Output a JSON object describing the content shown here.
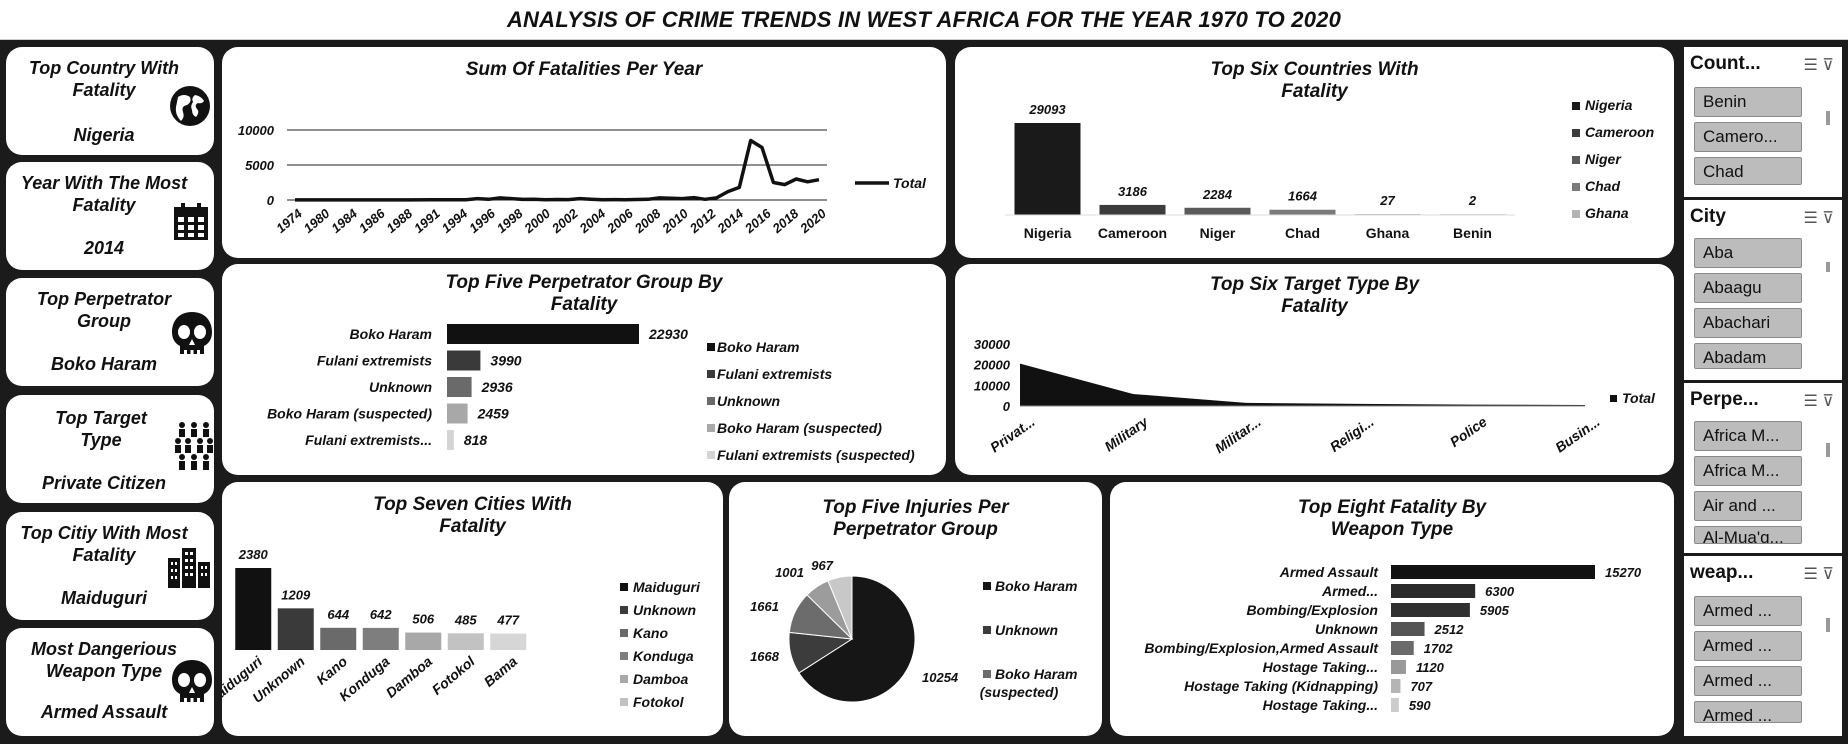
{
  "title": "ANALYSIS OF CRIME TRENDS IN WEST AFRICA FOR THE YEAR 1970 TO 2020",
  "kpis": [
    {
      "title": "Top Country With Fatality",
      "value": "Nigeria",
      "icon": "globe-icon"
    },
    {
      "title": "Year With The Most Fatality",
      "value": "2014",
      "icon": "calendar-icon"
    },
    {
      "title": "Top Perpetrator Group",
      "value": "Boko Haram",
      "icon": "skull-icon"
    },
    {
      "title": "Top Target Type",
      "value": "Private Citizen",
      "icon": "people-icon"
    },
    {
      "title": "Top Citiy With Most Fatality",
      "value": "Maiduguri",
      "icon": "buildings-icon"
    },
    {
      "title": "Most Dangerious Weapon Type",
      "value": "Armed Assault",
      "icon": "skull-icon"
    }
  ],
  "slicers": [
    {
      "header": "Count...",
      "items": [
        "Benin",
        "Camero...",
        "Chad"
      ]
    },
    {
      "header": "City",
      "items": [
        "Aba",
        "Abaagu",
        "Abachari",
        "Abadam"
      ]
    },
    {
      "header": "Perpe...",
      "items": [
        "Africa M...",
        "Africa M...",
        "Air and ...",
        "Al-Mua'q..."
      ]
    },
    {
      "header": "weap...",
      "items": [
        "Armed ...",
        "Armed ...",
        "Armed ...",
        "Armed ..."
      ]
    }
  ],
  "chart_data": [
    {
      "id": "fatalities_per_year",
      "type": "line",
      "title": "Sum Of Fatalities Per Year",
      "tick_labels": [
        "1974",
        "1980",
        "1984",
        "1986",
        "1988",
        "1991",
        "1994",
        "1996",
        "1998",
        "2000",
        "2002",
        "2004",
        "2006",
        "2008",
        "2010",
        "2012",
        "2014",
        "2016",
        "2018",
        "2020"
      ],
      "x": [
        1974,
        1978,
        1980,
        1982,
        1984,
        1986,
        1987,
        1988,
        1989,
        1990,
        1991,
        1992,
        1994,
        1995,
        1996,
        1997,
        1998,
        1999,
        2000,
        2001,
        2002,
        2003,
        2004,
        2005,
        2006,
        2007,
        2008,
        2009,
        2010,
        2011,
        2012,
        2013,
        2014,
        2015,
        2016,
        2017,
        2018,
        2019,
        2020
      ],
      "values": [
        20,
        10,
        15,
        10,
        20,
        30,
        40,
        30,
        50,
        200,
        100,
        300,
        80,
        100,
        50,
        70,
        60,
        200,
        100,
        50,
        60,
        40,
        70,
        100,
        300,
        250,
        200,
        350,
        100,
        300,
        1200,
        1800,
        8500,
        7500,
        2500,
        2200,
        3000,
        2600,
        2900
      ],
      "series": [
        {
          "name": "Total"
        }
      ],
      "yticks": [
        0,
        5000,
        10000
      ],
      "ylim": [
        0,
        10000
      ],
      "grid": true,
      "legend": "right"
    },
    {
      "id": "top_countries",
      "type": "bar",
      "title": "Top Six Countries With Fatality",
      "categories": [
        "Nigeria",
        "Cameroon",
        "Niger",
        "Chad",
        "Ghana",
        "Benin"
      ],
      "values": [
        29093,
        3186,
        2284,
        1664,
        27,
        2
      ],
      "legend_entries": [
        "Nigeria",
        "Cameroon",
        "Niger",
        "Chad",
        "Ghana"
      ],
      "colors": [
        "#1a1a1a",
        "#3c3c3c",
        "#5a5a5a",
        "#7a7a7a",
        "#b4b4b4",
        "#d0d0d0"
      ],
      "legend": "right"
    },
    {
      "id": "top_perpetrators",
      "type": "bar",
      "title": "Top Five Perpetrator Group By Fatality",
      "categories": [
        "Boko Haram",
        "Fulani extremists",
        "Unknown",
        "Boko Haram (suspected)",
        "Fulani extremists..."
      ],
      "legend_entries": [
        "Boko Haram",
        "Fulani extremists",
        "Unknown",
        "Boko Haram (suspected)",
        "Fulani extremists (suspected)"
      ],
      "values": [
        22930,
        3990,
        2936,
        2459,
        818
      ],
      "colors": [
        "#111111",
        "#3a3a3a",
        "#6a6a6a",
        "#a8a8a8",
        "#d4d4d4"
      ],
      "legend": "right"
    },
    {
      "id": "top_target_types",
      "type": "area",
      "title": "Top Six Target Type By Fatality",
      "categories": [
        "Privat...",
        "Military",
        "Militar...",
        "Religi...",
        "Police",
        "Busin..."
      ],
      "values": [
        20500,
        5800,
        1500,
        1000,
        700,
        500
      ],
      "series": [
        {
          "name": "Total"
        }
      ],
      "yticks": [
        0,
        10000,
        20000,
        30000
      ],
      "ylim": [
        0,
        30000
      ],
      "legend": "right"
    },
    {
      "id": "top_cities",
      "type": "bar",
      "title": "Top Seven Cities With Fatality",
      "categories": [
        "Maiduguri",
        "Unknown",
        "Kano",
        "Konduga",
        "Damboa",
        "Fotokol",
        "Bama"
      ],
      "values": [
        2380,
        1209,
        644,
        642,
        506,
        485,
        477
      ],
      "legend_entries": [
        "Maiduguri",
        "Unknown",
        "Kano",
        "Konduga",
        "Damboa",
        "Fotokol"
      ],
      "colors": [
        "#111111",
        "#3a3a3a",
        "#6a6a6a",
        "#7e7e7e",
        "#a8a8a8",
        "#c2c2c2",
        "#d6d6d6"
      ],
      "legend": "right"
    },
    {
      "id": "injuries_by_perpetrator",
      "type": "pie",
      "title": "Top Five Injuries Per Perpetrator Group",
      "values": [
        10254,
        1668,
        1661,
        1001,
        967
      ],
      "legend_entries": [
        "Boko Haram",
        "Unknown",
        "Boko Haram (suspected)"
      ],
      "colors": [
        "#161616",
        "#3c3c3c",
        "#6c6c6c",
        "#9c9c9c",
        "#c8c8c8"
      ],
      "legend": "right"
    },
    {
      "id": "fatality_by_weapon",
      "type": "bar",
      "title": "Top Eight Fatality By Weapon Type",
      "categories": [
        "Armed Assault",
        "Armed...",
        "Bombing/Explosion",
        "Unknown",
        "Bombing/Explosion,Armed Assault",
        "Hostage Taking...",
        "Hostage Taking (Kidnapping)",
        "Hostage Taking..."
      ],
      "values": [
        15270,
        6300,
        5905,
        2512,
        1702,
        1120,
        707,
        590
      ],
      "colors": [
        "#111111",
        "#2a2a2a",
        "#303030",
        "#555555",
        "#6a6a6a",
        "#999999",
        "#b5b5b5",
        "#cccccc"
      ]
    }
  ]
}
